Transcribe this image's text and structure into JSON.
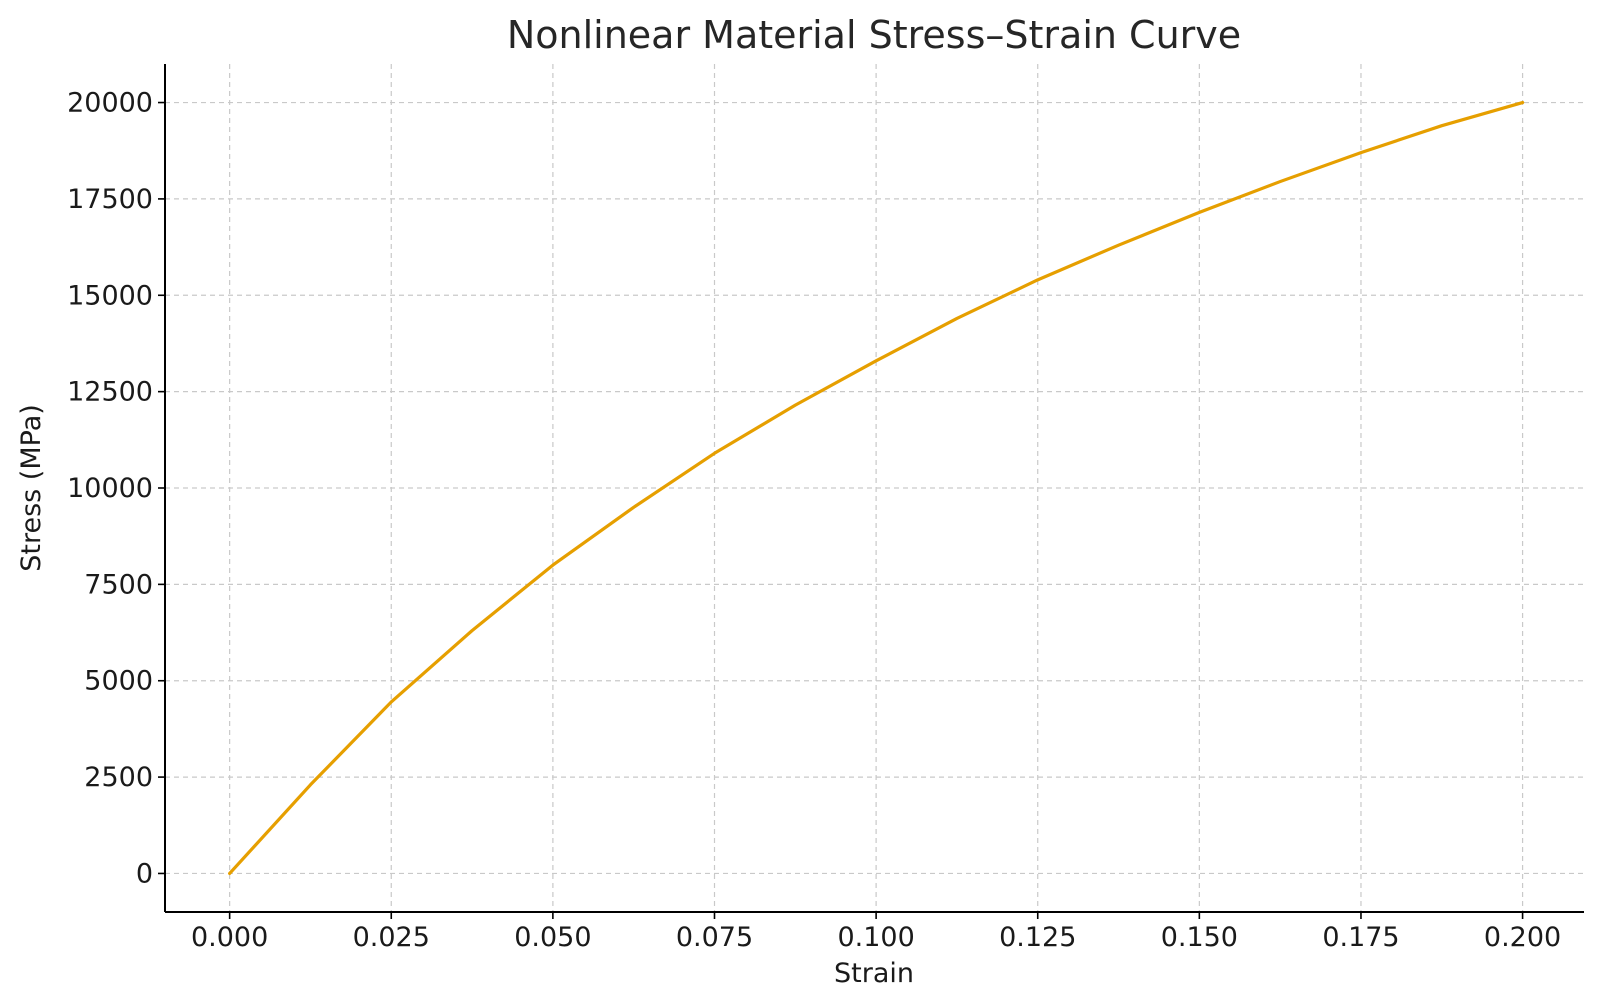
{
  "chart_data": {
    "type": "line",
    "title": "Nonlinear Material Stress–Strain Curve",
    "xlabel": "Strain",
    "ylabel": "Stress (MPa)",
    "xlim": [
      -0.01,
      0.2095
    ],
    "ylim": [
      -1000,
      21000
    ],
    "x_ticks": [
      "0.000",
      "0.025",
      "0.050",
      "0.075",
      "0.100",
      "0.125",
      "0.150",
      "0.175",
      "0.200"
    ],
    "y_ticks": [
      "0",
      "2500",
      "5000",
      "7500",
      "10000",
      "12500",
      "15000",
      "17500",
      "20000"
    ],
    "grid": true,
    "series": [
      {
        "color": "#e69f00",
        "x": [
          0.0,
          0.0125,
          0.025,
          0.0375,
          0.05,
          0.0625,
          0.075,
          0.0875,
          0.1,
          0.1125,
          0.125,
          0.1375,
          0.15,
          0.1625,
          0.175,
          0.1875,
          0.2
        ],
        "y": [
          0,
          2300,
          4450,
          6300,
          8000,
          9500,
          10900,
          12150,
          13300,
          14400,
          15400,
          16300,
          17150,
          17950,
          18700,
          19400,
          20000
        ]
      }
    ]
  }
}
